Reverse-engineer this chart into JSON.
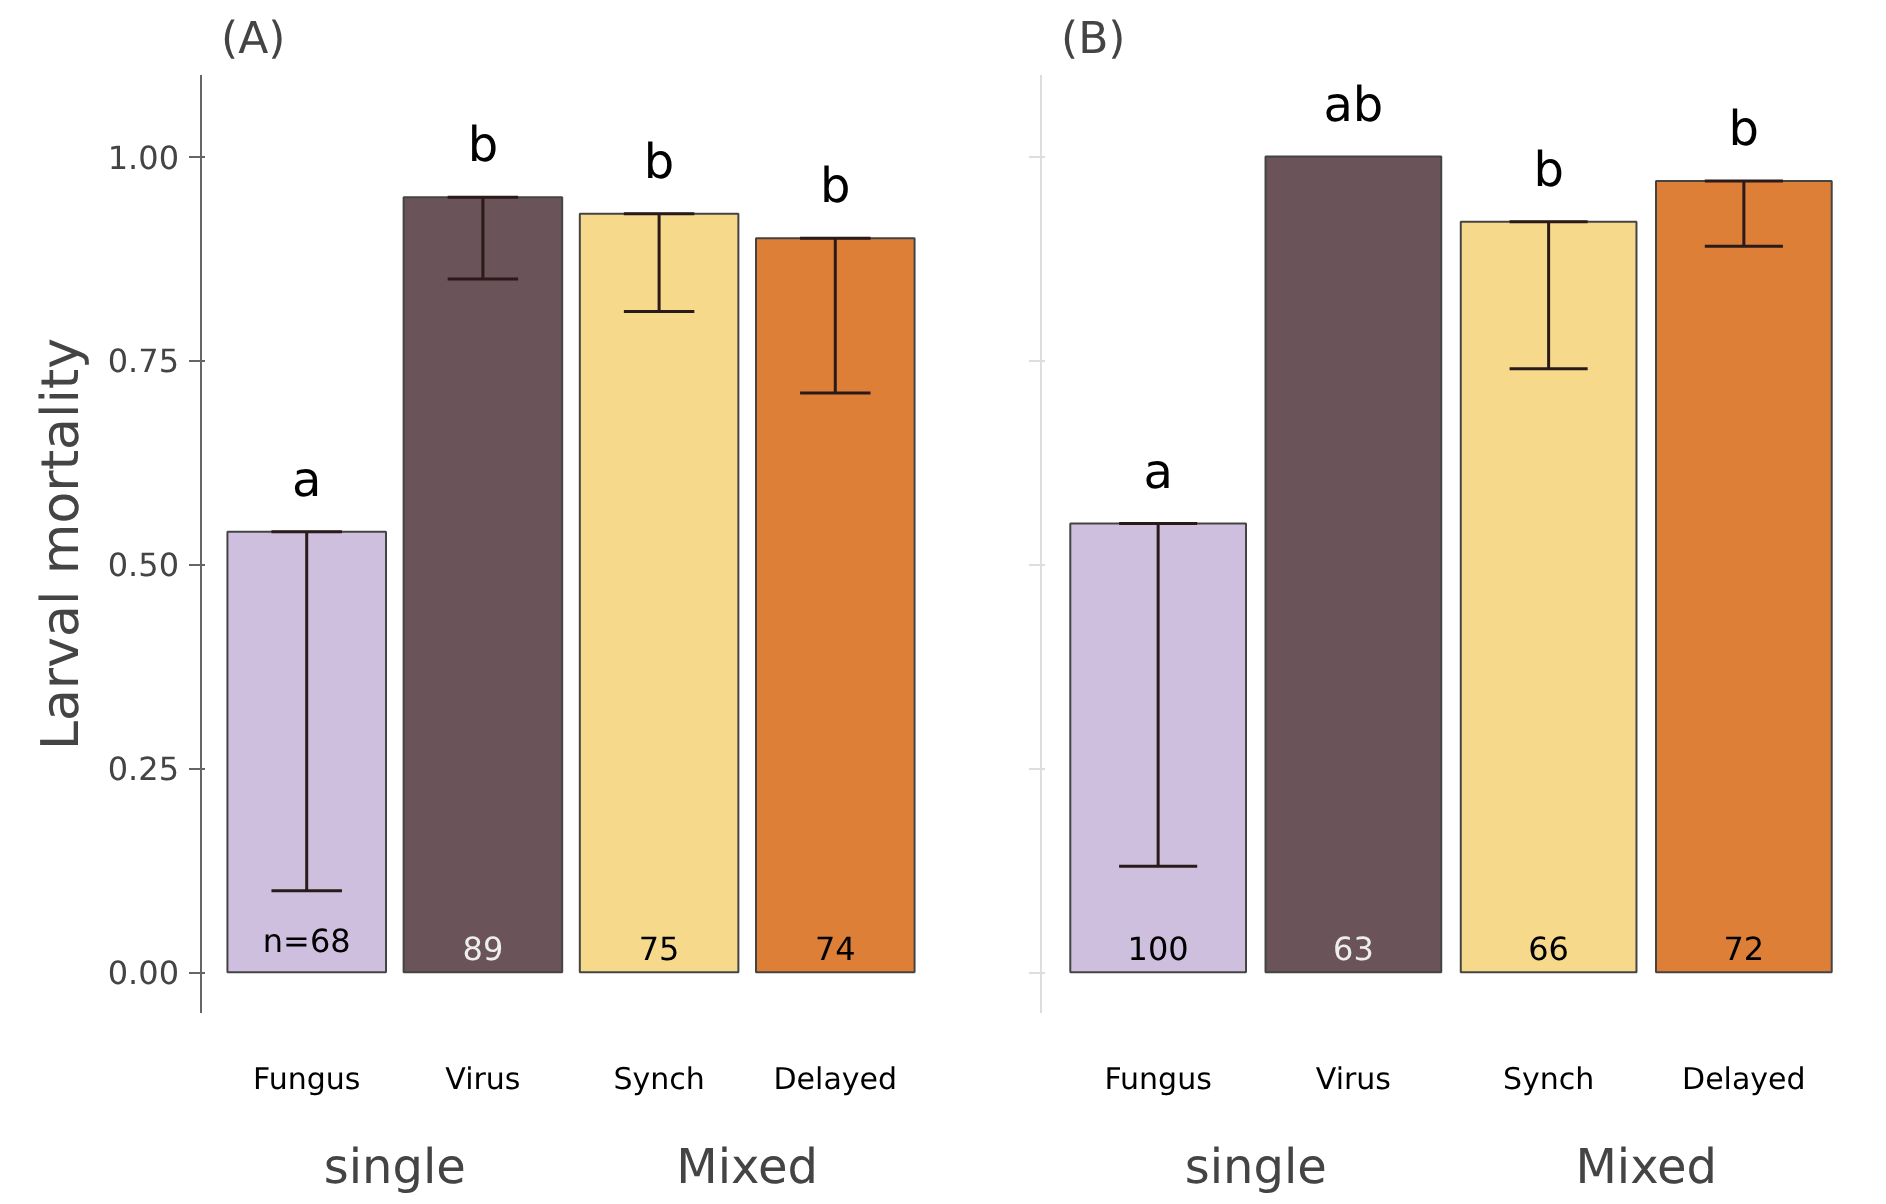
{
  "chart_data": [
    {
      "type": "bar",
      "title": "(A)",
      "ylabel": "Larval mortality",
      "categories": [
        "Fungus",
        "Virus",
        "Synch",
        "Delayed"
      ],
      "values": [
        0.54,
        0.95,
        0.93,
        0.9
      ],
      "colors": [
        "#cfbfdf",
        "#6b535a",
        "#f6d98a",
        "#de7f38"
      ],
      "errors": [
        [
          0.1,
          0.54
        ],
        [
          0.85,
          0.95
        ],
        [
          0.81,
          0.93
        ],
        [
          0.71,
          0.9
        ]
      ],
      "ylim": [
        -0.05,
        1.1
      ],
      "yticks": [
        {
          "value": 0,
          "label": "0.00"
        },
        {
          "value": 0.25,
          "label": "0.25"
        },
        {
          "value": 0.5,
          "label": "0.50"
        },
        {
          "value": 0.75,
          "label": "0.75"
        },
        {
          "value": 1,
          "label": "1.00"
        }
      ],
      "grid": false,
      "annotations": [
        "a",
        "b",
        "b",
        "b",
        "n=68",
        "89",
        "75",
        "74",
        "single",
        "Mixed"
      ]
    },
    {
      "type": "bar",
      "title": "(B)",
      "categories": [
        "Fungus",
        "Virus",
        "Synch",
        "Delayed"
      ],
      "values": [
        0.55,
        1.0,
        0.92,
        0.97
      ],
      "colors": [
        "#cfbfdf",
        "#6b535a",
        "#f6d98a",
        "#de7f38"
      ],
      "errors": [
        [
          0.13,
          0.55
        ],
        null,
        [
          0.74,
          0.92
        ],
        [
          0.89,
          0.97
        ]
      ],
      "ylim": [
        -0.05,
        1.1
      ],
      "yticks": [
        {
          "value": 0,
          "label": null
        },
        {
          "value": 0.25,
          "label": null
        },
        {
          "value": 0.5,
          "label": null
        },
        {
          "value": 0.75,
          "label": null
        },
        {
          "value": 1,
          "label": null
        }
      ],
      "tick_labels": "x",
      "grid": false,
      "annotations": [
        "a",
        "ab",
        "b",
        "b",
        "100",
        "63",
        "66",
        "72",
        "single",
        "Mixed"
      ]
    }
  ]
}
